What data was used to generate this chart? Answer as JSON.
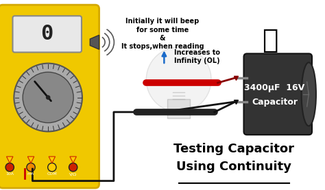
{
  "bg_color": "#ffffff",
  "title_line1": "Testing Capacitor",
  "title_line2": "Using Continuity",
  "title_color": "#000000",
  "title_fontsize": 13,
  "multimeter_body_color": "#f0c800",
  "multimeter_body_dark": "#d4a800",
  "screen_bg": "#e8e8e8",
  "display_digit_color": "#222222",
  "capacitor_body_color": "#333333",
  "capacitor_label_line1": "3400μF  16V",
  "capacitor_label_line2": "Capacitor",
  "capacitor_label_color": "#ffffff",
  "capacitor_label_fontsize": 9,
  "probe_red_color": "#cc0000",
  "probe_black_color": "#111111",
  "annotation_text1": "Initially it will beep\nfor some time\n&\nIt stops,when reading",
  "annotation_text2": "Increases to\nInfinity (OL)",
  "annotation_color": "#000000",
  "annotation_fontsize": 7,
  "arrow_color": "#1a6ac9",
  "dial_color": "#888888"
}
